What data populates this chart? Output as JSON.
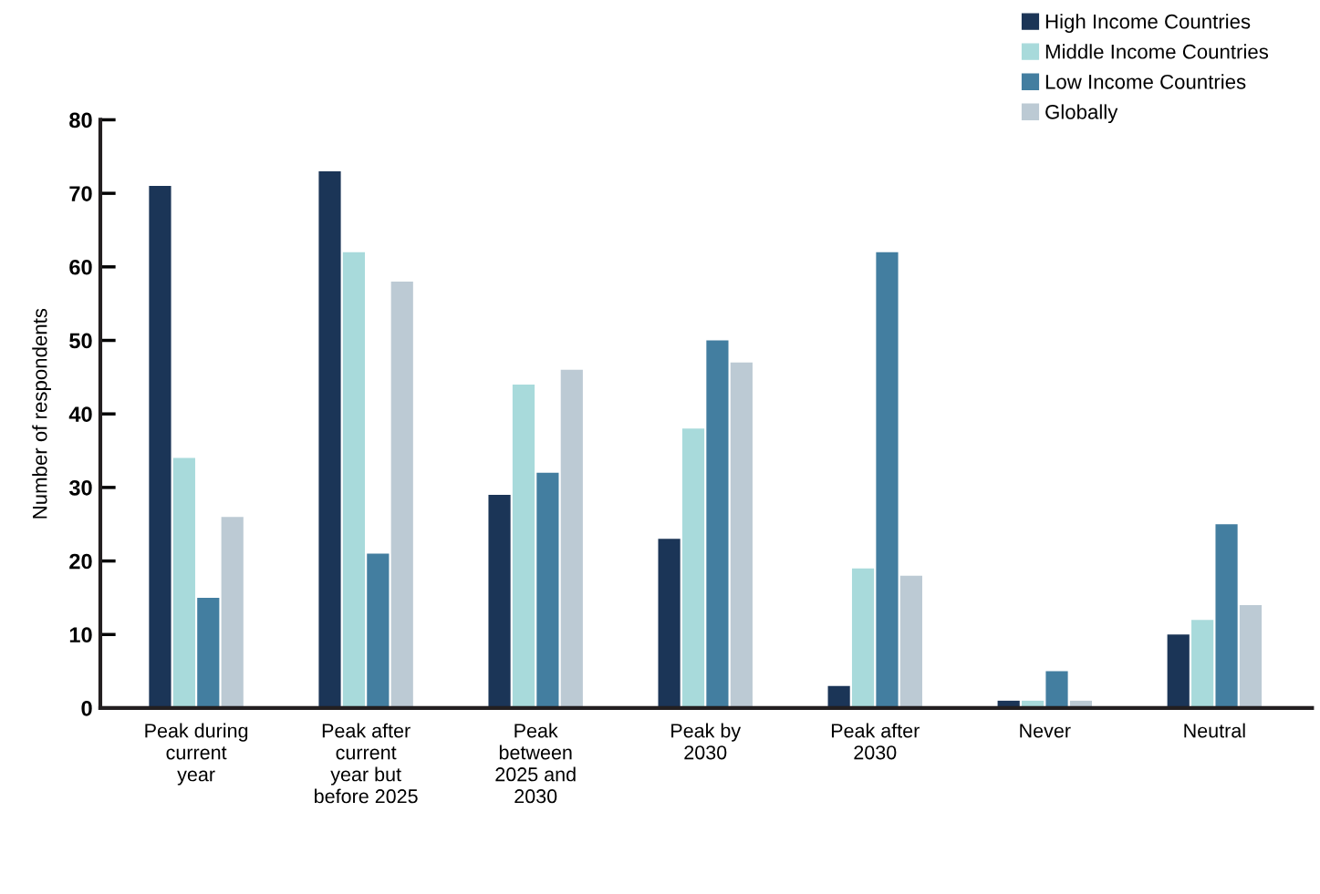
{
  "chart_data": {
    "type": "bar",
    "ylabel": "Number of respondents",
    "categories": [
      "Peak during current year",
      "Peak after current year but before 2025",
      "Peak between 2025 and 2030",
      "Peak by 2030",
      "Peak after 2030",
      "Never",
      "Neutral"
    ],
    "series": [
      {
        "name": "High Income Countries",
        "color": "#1b3557",
        "values": [
          71,
          73,
          29,
          23,
          3,
          1,
          10
        ]
      },
      {
        "name": "Middle Income Countries",
        "color": "#a8dadb",
        "values": [
          34,
          62,
          44,
          38,
          19,
          1,
          12
        ]
      },
      {
        "name": "Low Income Countries",
        "color": "#437ea0",
        "values": [
          15,
          21,
          32,
          50,
          62,
          5,
          25
        ]
      },
      {
        "name": "Globally",
        "color": "#bccad4",
        "values": [
          26,
          58,
          46,
          47,
          18,
          1,
          14
        ]
      }
    ],
    "ylim": [
      0,
      80
    ],
    "yticks": [
      0,
      10,
      20,
      30,
      40,
      50,
      60,
      70,
      80
    ],
    "grid": false,
    "legend": "top right"
  }
}
